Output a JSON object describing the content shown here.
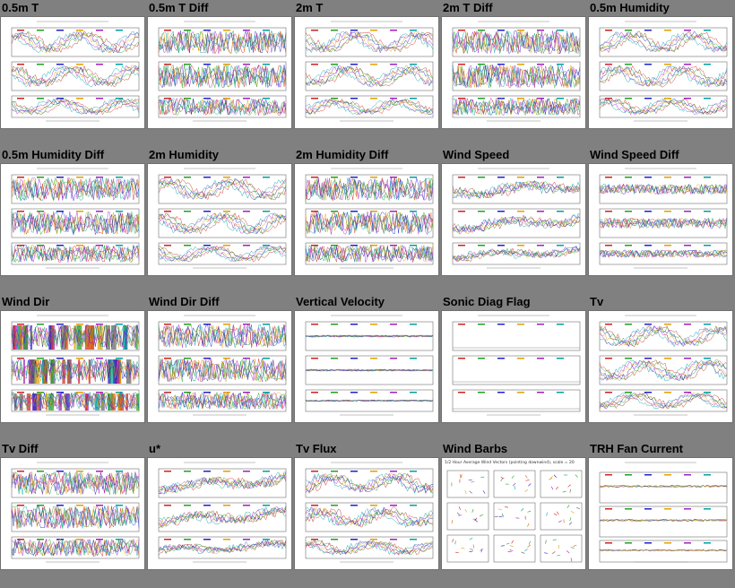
{
  "plots": [
    {
      "title": "0.5m T",
      "kind": "temp"
    },
    {
      "title": "0.5m T Diff",
      "kind": "diff"
    },
    {
      "title": "2m T",
      "kind": "temp"
    },
    {
      "title": "2m T Diff",
      "kind": "diff"
    },
    {
      "title": "0.5m Humidity",
      "kind": "humid"
    },
    {
      "title": "0.5m Humidity Diff",
      "kind": "diff"
    },
    {
      "title": "2m Humidity",
      "kind": "humid"
    },
    {
      "title": "2m Humidity Diff",
      "kind": "diff"
    },
    {
      "title": "Wind Speed",
      "kind": "wind"
    },
    {
      "title": "Wind Speed Diff",
      "kind": "windiff"
    },
    {
      "title": "Wind Dir",
      "kind": "winddir"
    },
    {
      "title": "Wind Dir Diff",
      "kind": "diff"
    },
    {
      "title": "Vertical Velocity",
      "kind": "flat"
    },
    {
      "title": "Sonic Diag Flag",
      "kind": "empty"
    },
    {
      "title": "Tv",
      "kind": "temp"
    },
    {
      "title": "Tv Diff",
      "kind": "diff"
    },
    {
      "title": "u*",
      "kind": "ustar"
    },
    {
      "title": "Tv Flux",
      "kind": "flux"
    },
    {
      "title": "Wind Barbs",
      "kind": "barbs",
      "header": "1/2 Hour Average Wind Vectors (pointing downwind), scale = 20"
    },
    {
      "title": "TRH Fan Current",
      "kind": "fan"
    }
  ],
  "colors": {
    "background": "#808080",
    "series": [
      "#d02020",
      "#20a020",
      "#2020d0",
      "#e0a000",
      "#a020c0",
      "#00a0a0",
      "#606060",
      "#e06000"
    ]
  }
}
